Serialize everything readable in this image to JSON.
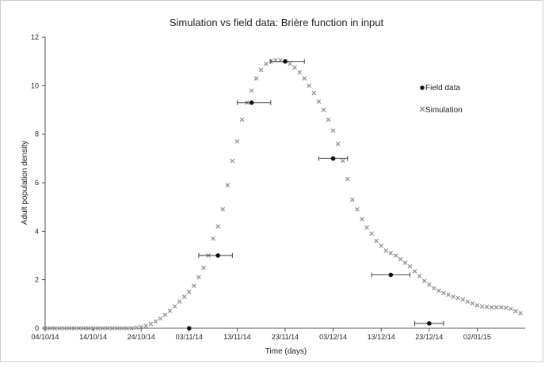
{
  "chart_data": {
    "type": "scatter",
    "title": "Simulation vs field data: Brière function in input",
    "xlabel": "Time (days)",
    "ylabel": "Adult population density",
    "ylim": [
      0,
      12
    ],
    "xlim": [
      "2014-10-04",
      "2015-01-12"
    ],
    "yticks": [
      "0",
      "2",
      "4",
      "6",
      "8",
      "10",
      "12"
    ],
    "xticks": [
      {
        "label": "04/10/14",
        "date": "2014-10-04"
      },
      {
        "label": "14/10/14",
        "date": "2014-10-14"
      },
      {
        "label": "24/10/14",
        "date": "2014-10-24"
      },
      {
        "label": "03/11/14",
        "date": "2014-11-03"
      },
      {
        "label": "13/11/14",
        "date": "2014-11-13"
      },
      {
        "label": "23/11/14",
        "date": "2014-11-23"
      },
      {
        "label": "03/12/14",
        "date": "2014-12-03"
      },
      {
        "label": "13/12/14",
        "date": "2014-12-13"
      },
      {
        "label": "23/12/14",
        "date": "2014-12-23"
      },
      {
        "label": "02/01/15",
        "date": "2015-01-02"
      }
    ],
    "legend_position": "right",
    "grid": false,
    "series": [
      {
        "name": "Field data",
        "marker": "circle",
        "color": "#111111",
        "points": [
          {
            "x": "2014-11-03",
            "y": 0.0
          },
          {
            "x": "2014-11-09",
            "y": 3.0,
            "xerr": [
              4,
              3
            ]
          },
          {
            "x": "2014-11-16",
            "y": 9.3,
            "xerr": [
              3,
              4
            ]
          },
          {
            "x": "2014-11-23",
            "y": 11.0,
            "xerr": [
              3,
              4
            ]
          },
          {
            "x": "2014-12-03",
            "y": 7.0,
            "xerr": [
              3,
              3
            ]
          },
          {
            "x": "2014-12-15",
            "y": 2.2,
            "xerr": [
              4,
              4
            ]
          },
          {
            "x": "2014-12-23",
            "y": 0.2,
            "xerr": [
              3,
              3
            ]
          }
        ]
      },
      {
        "name": "Simulation",
        "marker": "x",
        "color": "#8c8c8c",
        "x": [
          "2014-10-04",
          "2014-10-05",
          "2014-10-06",
          "2014-10-07",
          "2014-10-08",
          "2014-10-09",
          "2014-10-10",
          "2014-10-11",
          "2014-10-12",
          "2014-10-13",
          "2014-10-14",
          "2014-10-15",
          "2014-10-16",
          "2014-10-17",
          "2014-10-18",
          "2014-10-19",
          "2014-10-20",
          "2014-10-21",
          "2014-10-22",
          "2014-10-23",
          "2014-10-24",
          "2014-10-25",
          "2014-10-26",
          "2014-10-27",
          "2014-10-28",
          "2014-10-29",
          "2014-10-30",
          "2014-10-31",
          "2014-11-01",
          "2014-11-02",
          "2014-11-03",
          "2014-11-04",
          "2014-11-05",
          "2014-11-06",
          "2014-11-07",
          "2014-11-08",
          "2014-11-09",
          "2014-11-10",
          "2014-11-11",
          "2014-11-12",
          "2014-11-13",
          "2014-11-14",
          "2014-11-15",
          "2014-11-16",
          "2014-11-17",
          "2014-11-18",
          "2014-11-19",
          "2014-11-20",
          "2014-11-21",
          "2014-11-22",
          "2014-11-23",
          "2014-11-24",
          "2014-11-25",
          "2014-11-26",
          "2014-11-27",
          "2014-11-28",
          "2014-11-29",
          "2014-11-30",
          "2014-12-01",
          "2014-12-02",
          "2014-12-03",
          "2014-12-04",
          "2014-12-05",
          "2014-12-06",
          "2014-12-07",
          "2014-12-08",
          "2014-12-09",
          "2014-12-10",
          "2014-12-11",
          "2014-12-12",
          "2014-12-13",
          "2014-12-14",
          "2014-12-15",
          "2014-12-16",
          "2014-12-17",
          "2014-12-18",
          "2014-12-19",
          "2014-12-20",
          "2014-12-21",
          "2014-12-22",
          "2014-12-23",
          "2014-12-24",
          "2014-12-25",
          "2014-12-26",
          "2014-12-27",
          "2014-12-28",
          "2014-12-29",
          "2014-12-30",
          "2014-12-31",
          "2015-01-01",
          "2015-01-02",
          "2015-01-03",
          "2015-01-04",
          "2015-01-05",
          "2015-01-06",
          "2015-01-07",
          "2015-01-08",
          "2015-01-09",
          "2015-01-10",
          "2015-01-11"
        ],
        "y": [
          0,
          0,
          0,
          0,
          0,
          0,
          0,
          0,
          0,
          0,
          0,
          0,
          0,
          0,
          0,
          0,
          0,
          0,
          0,
          0.02,
          0.05,
          0.1,
          0.18,
          0.28,
          0.4,
          0.55,
          0.72,
          0.9,
          1.1,
          1.3,
          1.5,
          1.75,
          2.1,
          2.5,
          3.0,
          3.7,
          4.2,
          4.9,
          5.9,
          6.9,
          7.7,
          8.6,
          9.3,
          9.8,
          10.3,
          10.65,
          10.9,
          11.0,
          11.05,
          11.05,
          11.0,
          10.9,
          10.75,
          10.55,
          10.3,
          10.0,
          9.7,
          9.35,
          9.0,
          8.6,
          8.15,
          7.6,
          6.9,
          6.15,
          5.3,
          4.9,
          4.5,
          4.15,
          3.9,
          3.6,
          3.4,
          3.2,
          3.1,
          3.0,
          2.85,
          2.7,
          2.55,
          2.35,
          2.15,
          1.95,
          1.8,
          1.65,
          1.55,
          1.45,
          1.38,
          1.3,
          1.25,
          1.18,
          1.1,
          1.02,
          0.95,
          0.9,
          0.88,
          0.86,
          0.86,
          0.86,
          0.84,
          0.8,
          0.7,
          0.62
        ]
      }
    ]
  }
}
